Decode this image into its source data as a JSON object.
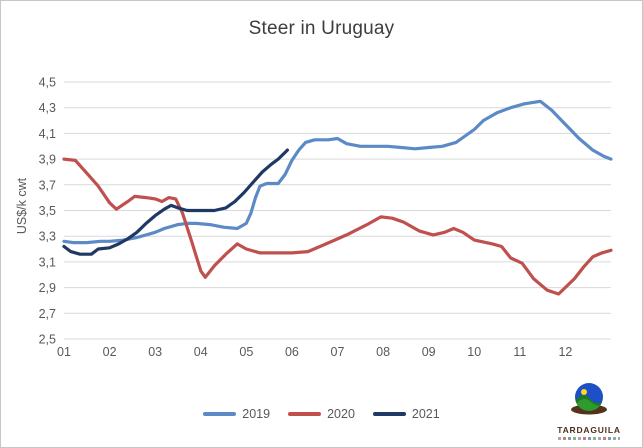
{
  "frame": {
    "background": "#ffffff",
    "border_color": "#c6c6c6"
  },
  "chart_data": {
    "type": "line",
    "title": "Steer in Uruguay",
    "xlabel": "",
    "ylabel": "US$/k cwt",
    "ylim": [
      2.5,
      4.5
    ],
    "xlim": [
      1,
      13
    ],
    "grid": "horizontal",
    "gridline_color": "#d9d9d9",
    "axis_text_color": "#595959",
    "title_color": "#3d3d3d",
    "legend_position": "bottom-center",
    "y_ticks": [
      {
        "v": 4.5,
        "label": "4,5"
      },
      {
        "v": 4.3,
        "label": "4,3"
      },
      {
        "v": 4.1,
        "label": "4,1"
      },
      {
        "v": 3.9,
        "label": "3,9"
      },
      {
        "v": 3.7,
        "label": "3,7"
      },
      {
        "v": 3.5,
        "label": "3,5"
      },
      {
        "v": 3.3,
        "label": "3,3"
      },
      {
        "v": 3.1,
        "label": "3,1"
      },
      {
        "v": 2.9,
        "label": "2,9"
      },
      {
        "v": 2.7,
        "label": "2,7"
      },
      {
        "v": 2.5,
        "label": "2,5"
      }
    ],
    "x_tick_labels": [
      "01",
      "02",
      "03",
      "04",
      "05",
      "06",
      "07",
      "08",
      "09",
      "10",
      "11",
      "12"
    ],
    "series": [
      {
        "name": "2019",
        "color": "#5b8ac6",
        "points": [
          [
            1.0,
            3.26
          ],
          [
            1.2,
            3.25
          ],
          [
            1.5,
            3.25
          ],
          [
            1.8,
            3.26
          ],
          [
            2.0,
            3.26
          ],
          [
            2.3,
            3.27
          ],
          [
            2.6,
            3.29
          ],
          [
            2.8,
            3.31
          ],
          [
            3.0,
            3.33
          ],
          [
            3.2,
            3.36
          ],
          [
            3.5,
            3.39
          ],
          [
            3.7,
            3.4
          ],
          [
            3.9,
            3.4
          ],
          [
            4.2,
            3.39
          ],
          [
            4.5,
            3.37
          ],
          [
            4.8,
            3.36
          ],
          [
            5.0,
            3.4
          ],
          [
            5.1,
            3.48
          ],
          [
            5.2,
            3.6
          ],
          [
            5.3,
            3.69
          ],
          [
            5.45,
            3.71
          ],
          [
            5.7,
            3.71
          ],
          [
            5.85,
            3.78
          ],
          [
            6.0,
            3.89
          ],
          [
            6.15,
            3.97
          ],
          [
            6.3,
            4.03
          ],
          [
            6.5,
            4.05
          ],
          [
            6.8,
            4.05
          ],
          [
            7.0,
            4.06
          ],
          [
            7.2,
            4.02
          ],
          [
            7.5,
            4.0
          ],
          [
            7.8,
            4.0
          ],
          [
            8.1,
            4.0
          ],
          [
            8.4,
            3.99
          ],
          [
            8.7,
            3.98
          ],
          [
            9.0,
            3.99
          ],
          [
            9.3,
            4.0
          ],
          [
            9.6,
            4.03
          ],
          [
            9.8,
            4.08
          ],
          [
            10.0,
            4.13
          ],
          [
            10.2,
            4.2
          ],
          [
            10.5,
            4.26
          ],
          [
            10.8,
            4.3
          ],
          [
            11.1,
            4.33
          ],
          [
            11.45,
            4.35
          ],
          [
            11.7,
            4.28
          ],
          [
            12.0,
            4.17
          ],
          [
            12.3,
            4.06
          ],
          [
            12.6,
            3.97
          ],
          [
            12.85,
            3.92
          ],
          [
            13.0,
            3.9
          ]
        ]
      },
      {
        "name": "2020",
        "color": "#c0504d",
        "points": [
          [
            1.0,
            3.9
          ],
          [
            1.25,
            3.89
          ],
          [
            1.5,
            3.79
          ],
          [
            1.75,
            3.69
          ],
          [
            2.0,
            3.56
          ],
          [
            2.15,
            3.51
          ],
          [
            2.4,
            3.57
          ],
          [
            2.55,
            3.61
          ],
          [
            2.8,
            3.6
          ],
          [
            3.0,
            3.59
          ],
          [
            3.15,
            3.57
          ],
          [
            3.3,
            3.6
          ],
          [
            3.45,
            3.59
          ],
          [
            3.6,
            3.48
          ],
          [
            3.8,
            3.26
          ],
          [
            4.0,
            3.03
          ],
          [
            4.1,
            2.98
          ],
          [
            4.3,
            3.07
          ],
          [
            4.55,
            3.16
          ],
          [
            4.8,
            3.24
          ],
          [
            5.0,
            3.2
          ],
          [
            5.3,
            3.17
          ],
          [
            5.7,
            3.17
          ],
          [
            6.0,
            3.17
          ],
          [
            6.35,
            3.18
          ],
          [
            6.75,
            3.24
          ],
          [
            7.2,
            3.31
          ],
          [
            7.65,
            3.39
          ],
          [
            7.95,
            3.45
          ],
          [
            8.2,
            3.44
          ],
          [
            8.45,
            3.41
          ],
          [
            8.8,
            3.34
          ],
          [
            9.1,
            3.31
          ],
          [
            9.35,
            3.33
          ],
          [
            9.55,
            3.36
          ],
          [
            9.75,
            3.33
          ],
          [
            10.0,
            3.27
          ],
          [
            10.4,
            3.24
          ],
          [
            10.6,
            3.22
          ],
          [
            10.8,
            3.13
          ],
          [
            11.05,
            3.09
          ],
          [
            11.3,
            2.97
          ],
          [
            11.6,
            2.88
          ],
          [
            11.85,
            2.85
          ],
          [
            12.2,
            2.97
          ],
          [
            12.4,
            3.06
          ],
          [
            12.6,
            3.14
          ],
          [
            12.8,
            3.17
          ],
          [
            13.0,
            3.19
          ]
        ]
      },
      {
        "name": "2021",
        "color": "#1f3864",
        "points": [
          [
            1.0,
            3.22
          ],
          [
            1.15,
            3.18
          ],
          [
            1.35,
            3.16
          ],
          [
            1.6,
            3.16
          ],
          [
            1.75,
            3.2
          ],
          [
            2.0,
            3.21
          ],
          [
            2.2,
            3.24
          ],
          [
            2.4,
            3.28
          ],
          [
            2.6,
            3.33
          ],
          [
            2.8,
            3.4
          ],
          [
            3.0,
            3.46
          ],
          [
            3.2,
            3.51
          ],
          [
            3.35,
            3.54
          ],
          [
            3.5,
            3.52
          ],
          [
            3.7,
            3.5
          ],
          [
            4.0,
            3.5
          ],
          [
            4.3,
            3.5
          ],
          [
            4.55,
            3.52
          ],
          [
            4.75,
            3.57
          ],
          [
            4.95,
            3.64
          ],
          [
            5.15,
            3.72
          ],
          [
            5.35,
            3.8
          ],
          [
            5.55,
            3.86
          ],
          [
            5.7,
            3.9
          ],
          [
            5.9,
            3.97
          ]
        ]
      }
    ]
  },
  "logo": {
    "text": "TARDAGUILA"
  }
}
